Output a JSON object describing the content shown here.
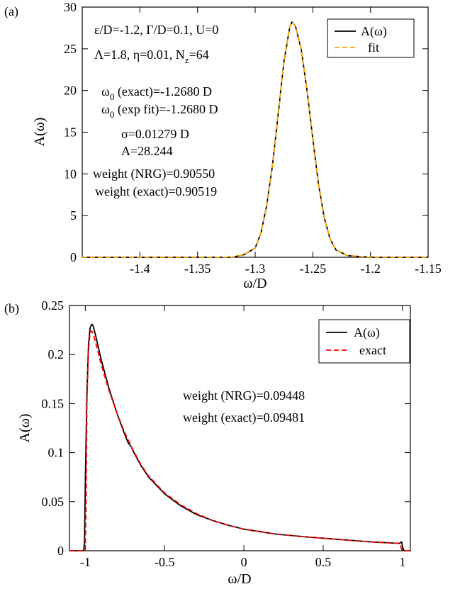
{
  "chart_data": [
    {
      "type": "line",
      "panel_label": "(a)",
      "xlabel": "ω/D",
      "ylabel": "A(ω)",
      "xlim": [
        -1.45,
        -1.15
      ],
      "ylim": [
        0,
        30
      ],
      "xticks": [
        -1.4,
        -1.35,
        -1.3,
        -1.25,
        -1.2,
        -1.15
      ],
      "xtick_labels": [
        "-1.4",
        "-1.35",
        "-1.3",
        "-1.25",
        "-1.2",
        "-1.15"
      ],
      "yticks": [
        0,
        5,
        10,
        15,
        20,
        25,
        30
      ],
      "ytick_labels": [
        "0",
        "5",
        "10",
        "15",
        "20",
        "25",
        "30"
      ],
      "legend_position": "top-right",
      "annotations": {
        "params1": "ε/D=-1.2, Γ/D=0.1, U=0",
        "params2_pre": "Λ=1.8, η=0.01, N",
        "params2_sub": "z",
        "params2_post": "=64",
        "w0_exact_pre": "ω",
        "w0_exact_sub": "0",
        "w0_exact_post": " (exact)=-1.2680 D",
        "w0_fit_pre": "ω",
        "w0_fit_sub": "0",
        "w0_fit_post": " (exp fit)=-1.2680 D",
        "sigma": "σ=0.01279 D",
        "amp": "A=28.244",
        "weight_nrg": "weight (NRG)=0.90550",
        "weight_exact": "weight (exact)=0.90519"
      },
      "series": [
        {
          "name": "A(ω)",
          "color": "#000000",
          "style": "solid",
          "x": [
            -1.45,
            -1.34,
            -1.32,
            -1.31,
            -1.3,
            -1.295,
            -1.29,
            -1.285,
            -1.28,
            -1.275,
            -1.27,
            -1.268,
            -1.265,
            -1.26,
            -1.255,
            -1.25,
            -1.245,
            -1.24,
            -1.235,
            -1.23,
            -1.22,
            -1.2,
            -1.15
          ],
          "y": [
            0,
            0,
            0.01,
            0.3,
            1.1,
            2.9,
            6.2,
            11.0,
            17.2,
            23.5,
            27.6,
            28.2,
            27.7,
            24.9,
            20.0,
            14.2,
            8.7,
            4.7,
            2.2,
            0.9,
            0.2,
            0,
            0
          ]
        },
        {
          "name": "fit",
          "color": "#ffa500",
          "style": "dashed",
          "x": [
            -1.45,
            -1.34,
            -1.32,
            -1.31,
            -1.3,
            -1.295,
            -1.29,
            -1.285,
            -1.28,
            -1.275,
            -1.27,
            -1.268,
            -1.265,
            -1.26,
            -1.255,
            -1.25,
            -1.245,
            -1.24,
            -1.235,
            -1.23,
            -1.22,
            -1.2,
            -1.15
          ],
          "y": [
            0,
            0,
            0.01,
            0.3,
            1.1,
            2.9,
            6.2,
            11.0,
            17.2,
            23.5,
            27.6,
            28.2,
            27.7,
            24.9,
            20.0,
            14.2,
            8.7,
            4.7,
            2.2,
            0.9,
            0.2,
            0,
            0
          ]
        }
      ]
    },
    {
      "type": "line",
      "panel_label": "(b)",
      "xlabel": "ω/D",
      "ylabel": "A(ω)",
      "xlim": [
        -1.1,
        1.05
      ],
      "ylim": [
        0,
        0.25
      ],
      "xticks": [
        -1,
        -0.5,
        0,
        0.5,
        1
      ],
      "xtick_labels": [
        "-1",
        "-0.5",
        "0",
        "0.5",
        "1"
      ],
      "yticks": [
        0,
        0.05,
        0.1,
        0.15,
        0.2,
        0.25
      ],
      "ytick_labels": [
        "0",
        "0.05",
        "0.1",
        "0.15",
        "0.2",
        "0.25"
      ],
      "legend_position": "top-right",
      "annotations": {
        "weight_nrg": "weight (NRG)=0.09448",
        "weight_exact": "weight (exact)=0.09481"
      },
      "series": [
        {
          "name": "A(ω)",
          "color": "#000000",
          "style": "solid",
          "x": [
            -1.1,
            -1.01,
            -1.005,
            -1.0,
            -0.99,
            -0.98,
            -0.97,
            -0.96,
            -0.95,
            -0.93,
            -0.9,
            -0.85,
            -0.8,
            -0.75,
            -0.73,
            -0.71,
            -0.7,
            -0.65,
            -0.6,
            -0.5,
            -0.4,
            -0.3,
            -0.2,
            -0.1,
            0,
            0.2,
            0.4,
            0.6,
            0.8,
            0.98,
            0.995,
            1.0,
            1.01,
            1.05
          ],
          "y": [
            0,
            0,
            0.01,
            0.07,
            0.16,
            0.21,
            0.227,
            0.231,
            0.229,
            0.216,
            0.195,
            0.165,
            0.14,
            0.118,
            0.11,
            0.106,
            0.102,
            0.087,
            0.075,
            0.058,
            0.046,
            0.037,
            0.031,
            0.026,
            0.022,
            0.017,
            0.014,
            0.0115,
            0.009,
            0.0075,
            0.009,
            0.004,
            0,
            0
          ]
        },
        {
          "name": "exact",
          "color": "#ff0000",
          "style": "dashed",
          "x": [
            -1.1,
            -1.0,
            -0.995,
            -0.99,
            -0.98,
            -0.97,
            -0.96,
            -0.95,
            -0.93,
            -0.9,
            -0.85,
            -0.8,
            -0.75,
            -0.7,
            -0.65,
            -0.6,
            -0.5,
            -0.4,
            -0.3,
            -0.2,
            -0.1,
            0,
            0.2,
            0.4,
            0.6,
            0.8,
            0.98,
            1.0,
            1.05
          ],
          "y": [
            0,
            0,
            0.05,
            0.15,
            0.205,
            0.222,
            0.224,
            0.221,
            0.209,
            0.19,
            0.163,
            0.14,
            0.12,
            0.103,
            0.088,
            0.076,
            0.059,
            0.047,
            0.038,
            0.031,
            0.026,
            0.022,
            0.017,
            0.014,
            0.0115,
            0.009,
            0.0075,
            0,
            0
          ]
        }
      ]
    }
  ]
}
